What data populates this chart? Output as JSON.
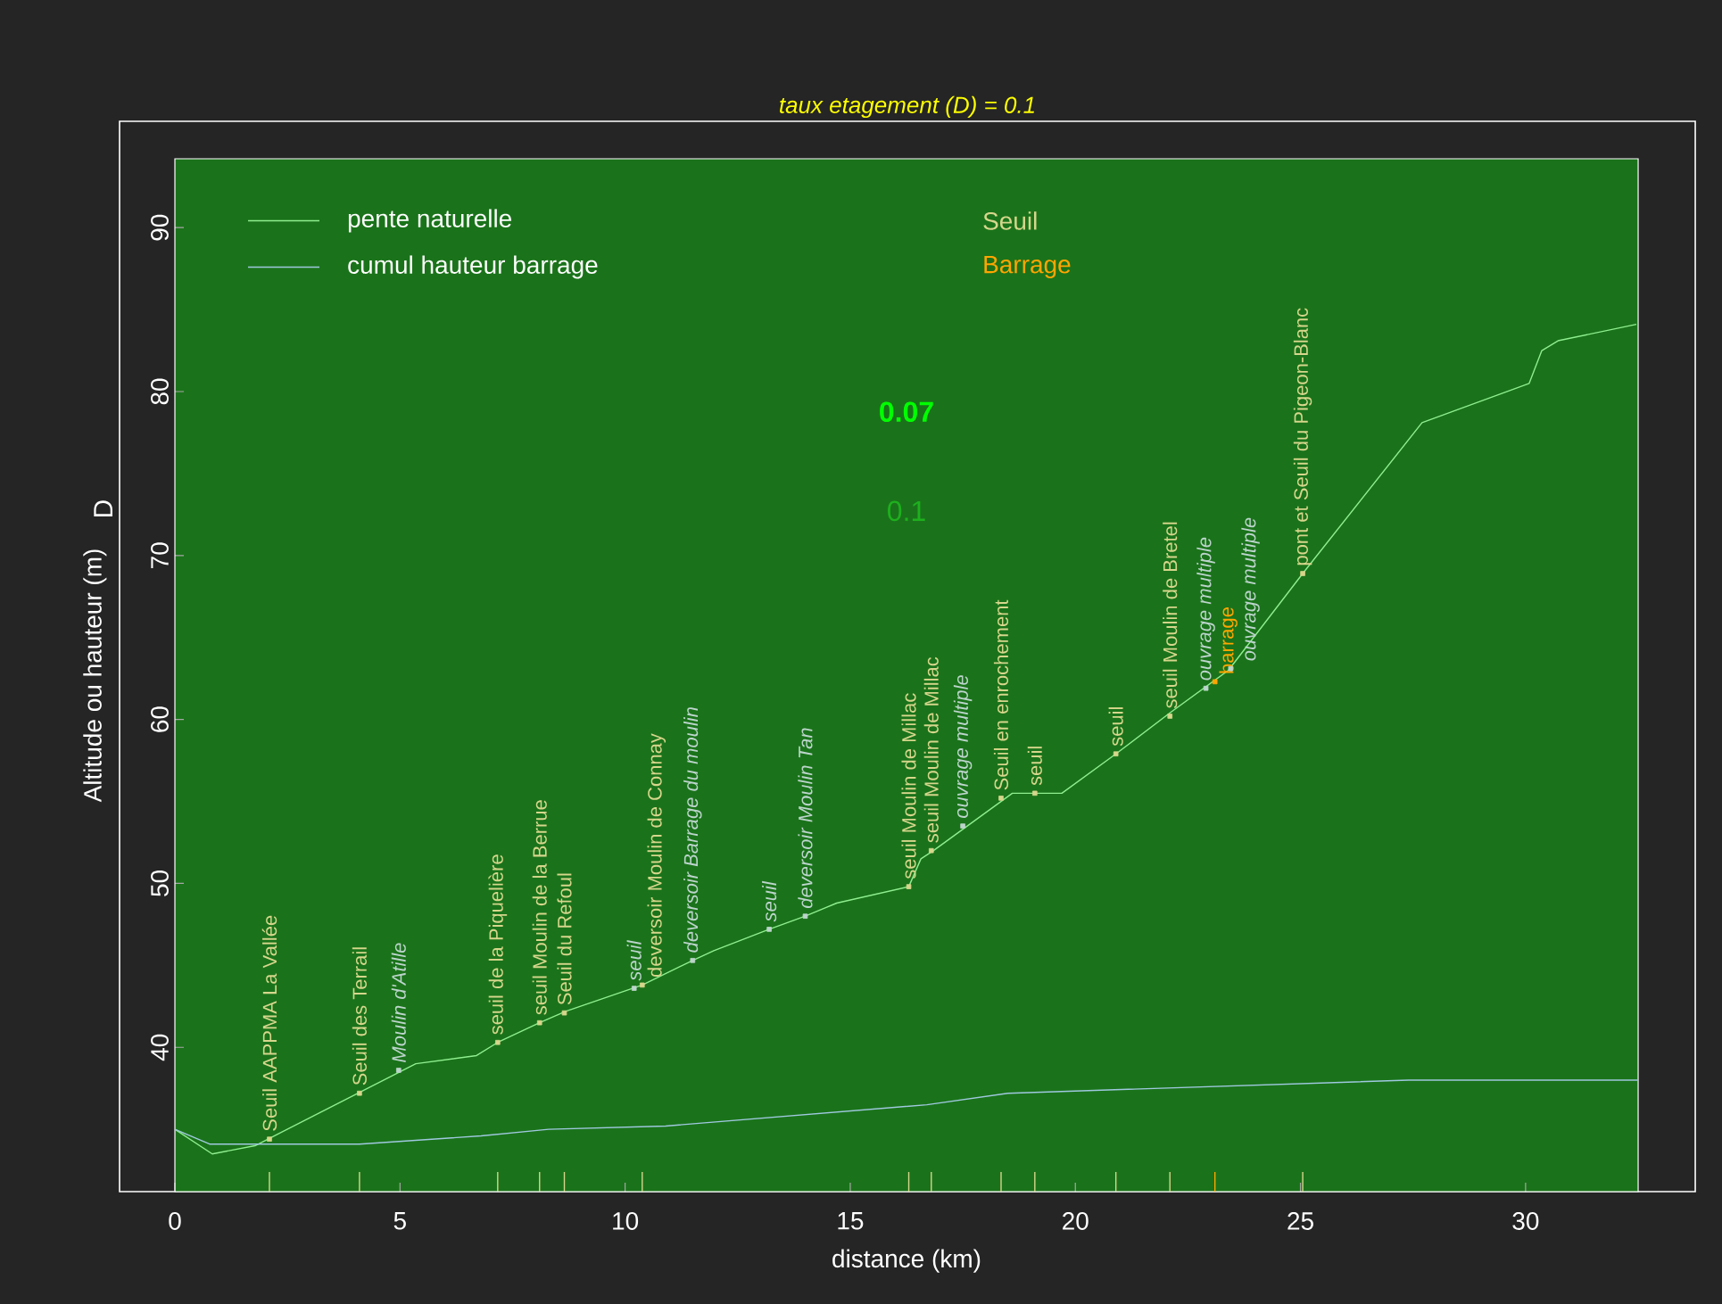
{
  "chart_data": {
    "type": "line",
    "title": "taux etagement (D) = 0.1",
    "xlabel": "distance (km)",
    "ylabel": "Altitude ou hauteur (m)",
    "xlim": [
      0,
      32.5
    ],
    "ylim": [
      31.2,
      94.2
    ],
    "xticks": [
      0,
      5,
      10,
      15,
      20,
      25,
      30
    ],
    "yticks": [
      40,
      50,
      60,
      70,
      80,
      90
    ],
    "legend": "top left",
    "series": [
      {
        "name": "pente naturelle",
        "color": "#90ee90",
        "x": [
          0,
          0.83,
          1.78,
          5.35,
          6.7,
          7.17,
          8.1,
          8.68,
          10.38,
          11.5,
          11.97,
          13.2,
          14.0,
          14.7,
          16.3,
          16.57,
          16.85,
          18.6,
          19.7,
          20.9,
          22.1,
          23.4,
          25.05,
          27.7,
          30.08,
          30.36,
          30.72,
          32.46
        ],
        "values": [
          35.0,
          33.5,
          34.0,
          39.0,
          39.5,
          40.3,
          41.5,
          42.2,
          43.8,
          45.3,
          45.9,
          47.2,
          48.0,
          48.8,
          49.8,
          51.5,
          52.0,
          55.5,
          55.5,
          57.9,
          60.4,
          63.0,
          68.9,
          78.1,
          80.5,
          82.5,
          83.1,
          84.1
        ]
      },
      {
        "name": "cumul hauteur barrage",
        "color": "#a0c8e0",
        "x": [
          0,
          0.77,
          4.1,
          6.8,
          8.3,
          10.9,
          16.7,
          18.5,
          27.4,
          32.5
        ],
        "values": [
          35.0,
          34.1,
          34.1,
          34.6,
          35.0,
          35.2,
          36.5,
          37.2,
          38.0,
          38.0
        ]
      },
      {
        "name": "Seuil",
        "type": "scatter",
        "color": "#d6d68c",
        "marker": "square",
        "x": [
          2.1,
          4.1,
          7.17,
          8.1,
          8.65,
          10.38,
          16.3,
          16.8,
          18.35,
          19.1,
          20.9,
          22.1,
          25.05
        ],
        "values": [
          34.4,
          37.2,
          40.3,
          41.5,
          42.1,
          43.8,
          49.8,
          52.0,
          55.2,
          55.5,
          57.9,
          60.2,
          68.9
        ]
      },
      {
        "name": "Barrage",
        "type": "scatter",
        "color": "#ffa500",
        "marker": "square",
        "x": [
          23.1
        ],
        "values": [
          62.3
        ]
      },
      {
        "type": "scatter",
        "color": "#bcd4cc",
        "marker": "square",
        "x": [
          4.97,
          10.2,
          11.5,
          13.2,
          14.0,
          17.5,
          22.9,
          23.45
        ],
        "values": [
          38.6,
          43.6,
          45.3,
          47.2,
          48.0,
          53.5,
          61.9,
          63.1
        ]
      }
    ],
    "annotations": [
      {
        "text": "Seuil AAPPMA La Vallée",
        "x": 2.1,
        "y": 34.4
      },
      {
        "text": "Seuil des Terrail",
        "x": 4.1,
        "y": 37.2
      },
      {
        "text": "Moulin d'Atille",
        "x": 4.97,
        "y": 38.6
      },
      {
        "text": "seuil de la Piquelière",
        "x": 7.17,
        "y": 40.3
      },
      {
        "text": "seuil Moulin de la Berrue",
        "x": 8.1,
        "y": 41.5
      },
      {
        "text": "Seuil du Refoul",
        "x": 8.65,
        "y": 42.1
      },
      {
        "text": "seuil",
        "x": 10.2,
        "y": 43.6
      },
      {
        "text": "deversoir Moulin de Connay",
        "x": 10.38,
        "y": 43.8
      },
      {
        "text": "deversoir Barrage du moulin",
        "x": 11.5,
        "y": 45.3
      },
      {
        "text": "seuil",
        "x": 13.2,
        "y": 47.2
      },
      {
        "text": "deversoir Moulin Tan",
        "x": 14.0,
        "y": 48.0
      },
      {
        "text": "seuil Moulin de Millac",
        "x": 16.3,
        "y": 49.8
      },
      {
        "text": "seuil Moulin de Millac",
        "x": 16.8,
        "y": 52.0
      },
      {
        "text": "ouvrage multiple",
        "x": 17.5,
        "y": 53.5
      },
      {
        "text": "Seuil en enrochement",
        "x": 18.35,
        "y": 55.2
      },
      {
        "text": "seuil",
        "x": 19.1,
        "y": 55.5
      },
      {
        "text": "seuil",
        "x": 20.9,
        "y": 57.9
      },
      {
        "text": "seuil Moulin de Bretel",
        "x": 22.1,
        "y": 60.2
      },
      {
        "text": "ouvrage multiple",
        "x": 22.9,
        "y": 61.9
      },
      {
        "text": "barrage",
        "x": 23.1,
        "y": 62.3
      },
      {
        "text": "ouvrage multiple",
        "x": 23.45,
        "y": 63.1
      },
      {
        "text": "pont et Seuil du Pigeon-Blanc",
        "x": 25.05,
        "y": 68.9
      },
      "0.07",
      "0.1",
      "D"
    ]
  }
}
